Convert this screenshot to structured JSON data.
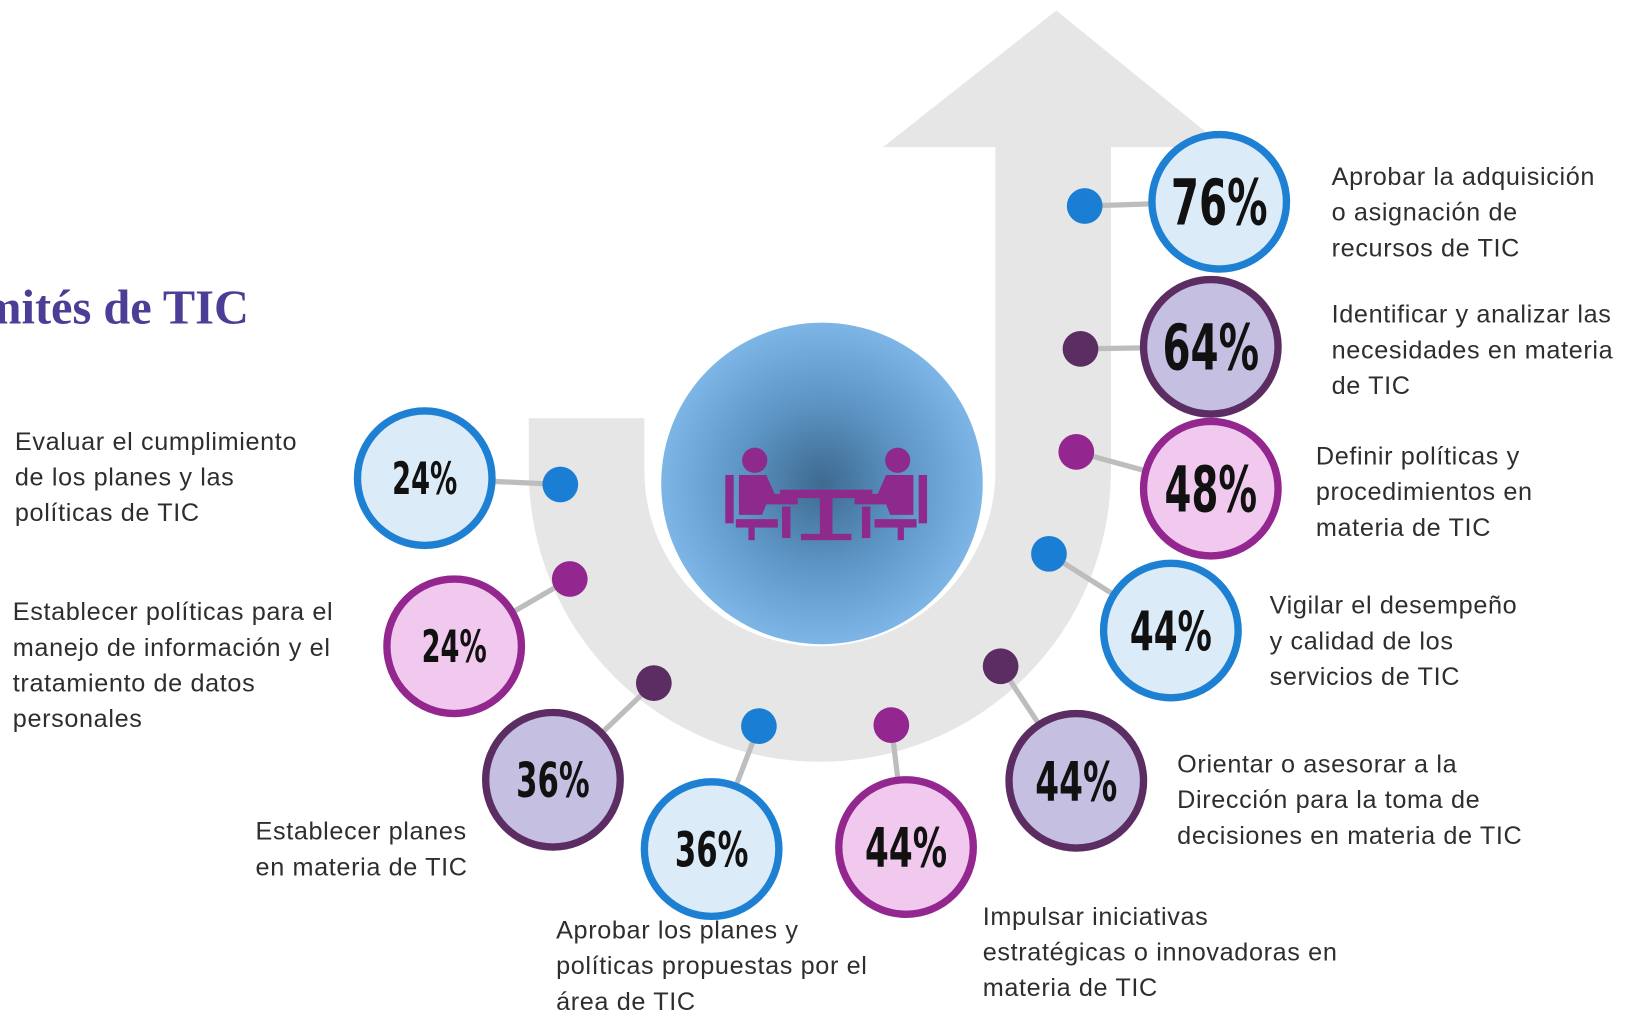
{
  "title": "mités de TIC",
  "items": [
    {
      "value": "76%",
      "label": [
        "Aprobar la adquisición",
        "o asignación de",
        "recursos de TIC"
      ]
    },
    {
      "value": "64%",
      "label": [
        "Identificar y analizar las",
        "necesidades en materia",
        "de TIC"
      ]
    },
    {
      "value": "48%",
      "label": [
        "Definir políticas y",
        "procedimientos en",
        "materia de TIC"
      ]
    },
    {
      "value": "44%",
      "label": [
        "Vigilar el desempeño",
        "y calidad de los",
        "servicios de TIC"
      ]
    },
    {
      "value": "44%",
      "label": [
        "Orientar o asesorar a la",
        "Dirección para la toma de",
        "decisiones en materia de TIC"
      ]
    },
    {
      "value": "44%",
      "label": [
        "Impulsar iniciativas",
        "estratégicas o innovadoras en",
        "materia de TIC"
      ]
    },
    {
      "value": "36%",
      "label": [
        "Aprobar los planes y",
        "políticas propuestas por el",
        "área de TIC"
      ]
    },
    {
      "value": "36%",
      "label": [
        "Establecer planes",
        "en materia de TIC"
      ]
    },
    {
      "value": "24%",
      "label": [
        "Establecer políticas para el",
        "manejo de información y el",
        "tratamiento de datos",
        "personales"
      ]
    },
    {
      "value": "24%",
      "label": [
        "Evaluar el cumplimiento",
        "de los planes y las",
        "políticas de TIC"
      ]
    }
  ]
}
